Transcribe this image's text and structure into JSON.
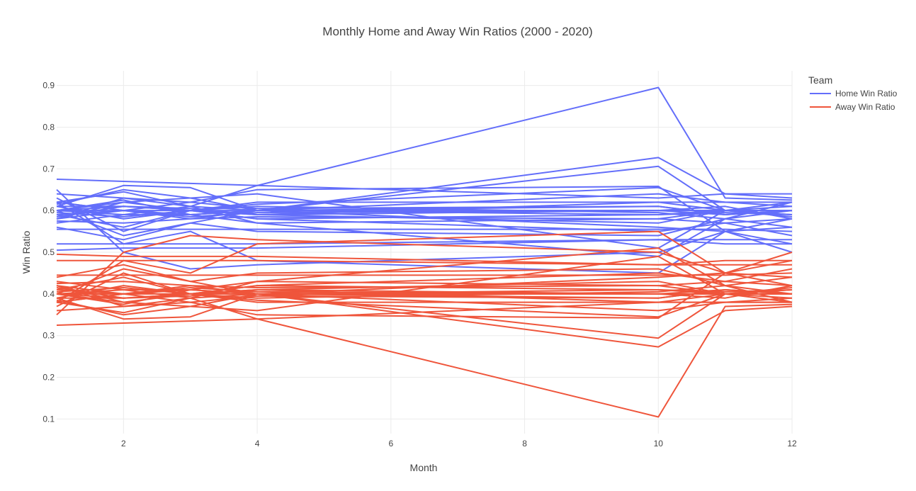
{
  "chart_data": {
    "type": "line",
    "title": "Monthly Home and Away Win Ratios (2000 - 2020)",
    "xlabel": "Month",
    "ylabel": "Win Ratio",
    "xlim": [
      1,
      12
    ],
    "ylim": [
      0.065,
      0.935
    ],
    "x_ticks": [
      2,
      4,
      6,
      8,
      10,
      12
    ],
    "y_ticks": [
      0.1,
      0.2,
      0.3,
      0.4,
      0.5,
      0.6,
      0.7,
      0.8,
      0.9
    ],
    "grid": true,
    "legend": {
      "title": "Team",
      "placement": "top-right"
    },
    "x": [
      1,
      2,
      3,
      4,
      10,
      11,
      12
    ],
    "series": [
      {
        "name": "Home Win Ratio",
        "color": "#636efa",
        "lines": [
          [
            0.675,
            0.67,
            0.665,
            0.66,
            0.63,
            0.64,
            0.64
          ],
          [
            0.62,
            0.645,
            0.61,
            0.66,
            0.895,
            0.63,
            0.625
          ],
          [
            0.615,
            0.65,
            0.63,
            0.6,
            0.727,
            0.64,
            0.63
          ],
          [
            0.61,
            0.66,
            0.655,
            0.6,
            0.706,
            0.6,
            0.6
          ],
          [
            0.64,
            0.63,
            0.62,
            0.65,
            0.658,
            0.55,
            0.56
          ],
          [
            0.63,
            0.55,
            0.6,
            0.615,
            0.655,
            0.6,
            0.62
          ],
          [
            0.62,
            0.6,
            0.59,
            0.6,
            0.64,
            0.62,
            0.61
          ],
          [
            0.6,
            0.61,
            0.6,
            0.59,
            0.62,
            0.6,
            0.6
          ],
          [
            0.595,
            0.585,
            0.6,
            0.6,
            0.61,
            0.59,
            0.6
          ],
          [
            0.59,
            0.6,
            0.585,
            0.595,
            0.6,
            0.6,
            0.59
          ],
          [
            0.6,
            0.59,
            0.61,
            0.6,
            0.59,
            0.595,
            0.59
          ],
          [
            0.585,
            0.61,
            0.605,
            0.59,
            0.6,
            0.61,
            0.58
          ],
          [
            0.61,
            0.58,
            0.6,
            0.61,
            0.595,
            0.58,
            0.62
          ],
          [
            0.6,
            0.625,
            0.59,
            0.6,
            0.6,
            0.6,
            0.61
          ],
          [
            0.58,
            0.6,
            0.62,
            0.605,
            0.61,
            0.59,
            0.6
          ],
          [
            0.575,
            0.57,
            0.58,
            0.585,
            0.58,
            0.57,
            0.58
          ],
          [
            0.6,
            0.6,
            0.6,
            0.59,
            0.57,
            0.6,
            0.59
          ],
          [
            0.59,
            0.56,
            0.6,
            0.58,
            0.59,
            0.6,
            0.585
          ],
          [
            0.62,
            0.6,
            0.58,
            0.6,
            0.6,
            0.59,
            0.6
          ],
          [
            0.57,
            0.59,
            0.59,
            0.57,
            0.58,
            0.6,
            0.6
          ],
          [
            0.6,
            0.54,
            0.57,
            0.6,
            0.56,
            0.55,
            0.58
          ],
          [
            0.58,
            0.62,
            0.6,
            0.58,
            0.55,
            0.57,
            0.54
          ],
          [
            0.56,
            0.53,
            0.57,
            0.55,
            0.54,
            0.58,
            0.56
          ],
          [
            0.555,
            0.555,
            0.555,
            0.555,
            0.555,
            0.555,
            0.55
          ],
          [
            0.52,
            0.52,
            0.52,
            0.52,
            0.53,
            0.52,
            0.52
          ],
          [
            0.505,
            0.51,
            0.51,
            0.51,
            0.53,
            0.53,
            0.53
          ],
          [
            0.65,
            0.5,
            0.46,
            0.47,
            0.5,
            0.55,
            0.52
          ],
          [
            0.62,
            0.52,
            0.55,
            0.48,
            0.45,
            0.55,
            0.5
          ],
          [
            0.58,
            0.63,
            0.61,
            0.57,
            0.49,
            0.58,
            0.6
          ],
          [
            0.6,
            0.62,
            0.63,
            0.64,
            0.51,
            0.6,
            0.6
          ],
          [
            0.61,
            0.61,
            0.6,
            0.62,
            0.62,
            0.62,
            0.62
          ]
        ]
      },
      {
        "name": "Away Win Ratio",
        "color": "#ef553b",
        "lines": [
          [
            0.325,
            0.33,
            0.335,
            0.34,
            0.38,
            0.38,
            0.38
          ],
          [
            0.38,
            0.355,
            0.39,
            0.34,
            0.105,
            0.37,
            0.375
          ],
          [
            0.385,
            0.35,
            0.37,
            0.4,
            0.273,
            0.36,
            0.37
          ],
          [
            0.39,
            0.34,
            0.345,
            0.4,
            0.294,
            0.4,
            0.4
          ],
          [
            0.36,
            0.37,
            0.38,
            0.35,
            0.342,
            0.45,
            0.44
          ],
          [
            0.37,
            0.45,
            0.4,
            0.385,
            0.345,
            0.4,
            0.38
          ],
          [
            0.38,
            0.4,
            0.41,
            0.4,
            0.36,
            0.38,
            0.39
          ],
          [
            0.4,
            0.39,
            0.4,
            0.41,
            0.38,
            0.4,
            0.4
          ],
          [
            0.405,
            0.415,
            0.4,
            0.4,
            0.39,
            0.41,
            0.4
          ],
          [
            0.41,
            0.4,
            0.415,
            0.405,
            0.4,
            0.4,
            0.41
          ],
          [
            0.4,
            0.41,
            0.39,
            0.4,
            0.41,
            0.405,
            0.41
          ],
          [
            0.415,
            0.39,
            0.395,
            0.41,
            0.4,
            0.39,
            0.42
          ],
          [
            0.39,
            0.42,
            0.4,
            0.39,
            0.405,
            0.42,
            0.38
          ],
          [
            0.4,
            0.375,
            0.41,
            0.4,
            0.4,
            0.4,
            0.39
          ],
          [
            0.42,
            0.4,
            0.38,
            0.395,
            0.39,
            0.41,
            0.4
          ],
          [
            0.425,
            0.43,
            0.42,
            0.415,
            0.42,
            0.43,
            0.42
          ],
          [
            0.4,
            0.4,
            0.4,
            0.41,
            0.43,
            0.4,
            0.41
          ],
          [
            0.41,
            0.44,
            0.4,
            0.42,
            0.41,
            0.4,
            0.415
          ],
          [
            0.38,
            0.4,
            0.42,
            0.4,
            0.4,
            0.41,
            0.4
          ],
          [
            0.43,
            0.41,
            0.41,
            0.43,
            0.42,
            0.4,
            0.4
          ],
          [
            0.4,
            0.46,
            0.43,
            0.4,
            0.44,
            0.45,
            0.42
          ],
          [
            0.42,
            0.38,
            0.4,
            0.42,
            0.45,
            0.43,
            0.46
          ],
          [
            0.44,
            0.47,
            0.43,
            0.45,
            0.46,
            0.42,
            0.44
          ],
          [
            0.445,
            0.445,
            0.445,
            0.445,
            0.445,
            0.445,
            0.45
          ],
          [
            0.48,
            0.48,
            0.48,
            0.48,
            0.47,
            0.48,
            0.48
          ],
          [
            0.495,
            0.49,
            0.49,
            0.49,
            0.47,
            0.47,
            0.47
          ],
          [
            0.35,
            0.5,
            0.54,
            0.53,
            0.5,
            0.45,
            0.48
          ],
          [
            0.38,
            0.48,
            0.45,
            0.52,
            0.55,
            0.45,
            0.5
          ],
          [
            0.42,
            0.37,
            0.39,
            0.43,
            0.51,
            0.42,
            0.4
          ],
          [
            0.4,
            0.38,
            0.37,
            0.36,
            0.49,
            0.4,
            0.4
          ],
          [
            0.39,
            0.39,
            0.4,
            0.38,
            0.38,
            0.38,
            0.38
          ]
        ]
      }
    ]
  }
}
